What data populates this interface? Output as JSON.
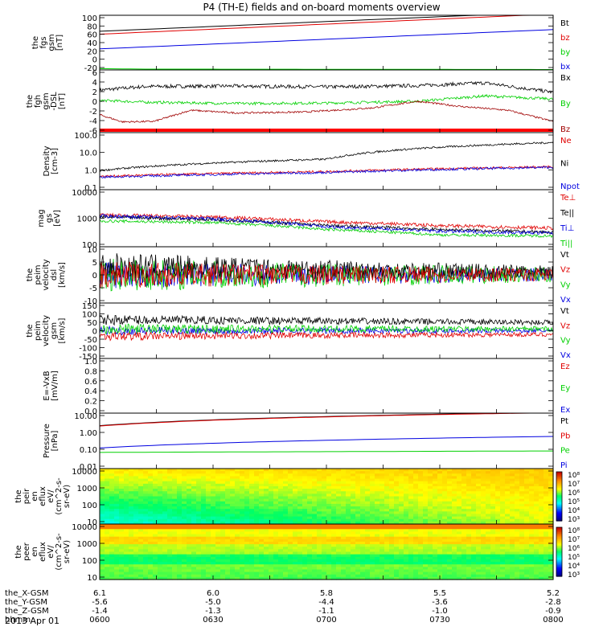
{
  "title": "P4 (TH-E) fields and on-board moments overview",
  "date": "2013 Apr 01",
  "colors": {
    "black": "#000000",
    "red": "#e00000",
    "green": "#00d000",
    "blue": "#0000e0",
    "darkred": "#a00000",
    "brightred": "#ff0000"
  },
  "chart_data": [
    {
      "type": "line",
      "name": "fgs",
      "ylabel": [
        "the",
        "fgs",
        "gsm",
        "[nT]"
      ],
      "yticks": [
        "100",
        "80",
        "60",
        "40",
        "20",
        "0",
        "-20"
      ],
      "ylim": [
        -30,
        100
      ],
      "legend": [
        {
          "label": "Bt",
          "color": "#000000"
        },
        {
          "label": "bz",
          "color": "#e00000"
        },
        {
          "label": "by",
          "color": "#00d000"
        },
        {
          "label": "bx",
          "color": "#0000e0"
        }
      ],
      "series": [
        {
          "color": "#000000",
          "x": [
            0,
            1
          ],
          "y": [
            62,
            108
          ],
          "noise": 0
        },
        {
          "color": "#e00000",
          "x": [
            0,
            1
          ],
          "y": [
            55,
            103
          ],
          "noise": 0
        },
        {
          "color": "#0000e0",
          "x": [
            0,
            1
          ],
          "y": [
            20,
            66
          ],
          "noise": 0
        },
        {
          "color": "#00d000",
          "x": [
            0,
            0.1,
            1
          ],
          "y": [
            -27,
            -28,
            -29
          ],
          "noise": 0
        }
      ]
    },
    {
      "type": "line",
      "name": "fgh",
      "ylabel": [
        "the",
        "fgh",
        "gsm",
        "-DSL",
        "[nT]"
      ],
      "yticks": [
        "6",
        "4",
        "2",
        "0",
        "-2",
        "-4",
        "-6"
      ],
      "ylim": [
        -8,
        6
      ],
      "legend": [
        {
          "label": "Bx",
          "color": "#000000"
        },
        {
          "label": "By",
          "color": "#00d000"
        },
        {
          "label": "Bz",
          "color": "#a00000"
        }
      ],
      "series": [
        {
          "color": "#000000",
          "x": [
            0,
            0.1,
            0.3,
            0.5,
            0.7,
            0.85,
            1
          ],
          "y": [
            1.5,
            2.3,
            2.4,
            2.2,
            2.5,
            3.1,
            1.0
          ],
          "noise": 0.4
        },
        {
          "color": "#00d000",
          "x": [
            0,
            0.1,
            0.3,
            0.5,
            0.7,
            0.85,
            1
          ],
          "y": [
            -0.8,
            -1.2,
            -1.5,
            -1.4,
            -1.0,
            0.2,
            -0.5
          ],
          "noise": 0.3
        },
        {
          "color": "#a00000",
          "x": [
            0,
            0.05,
            0.12,
            0.2,
            0.3,
            0.45,
            0.6,
            0.7,
            0.8,
            0.9,
            1
          ],
          "y": [
            -4,
            -5.6,
            -5.5,
            -3.0,
            -3.6,
            -3.4,
            -2.5,
            -1.0,
            -2.2,
            -3.0,
            -5.5
          ],
          "noise": 0.2
        }
      ],
      "redbar": true
    },
    {
      "type": "line",
      "name": "density",
      "scale": "log",
      "ylabel": [
        "Density",
        "[cm-3]"
      ],
      "yticks": [
        "100.0",
        "10.0",
        "1.0",
        "0.1"
      ],
      "ylim": [
        0.1,
        100
      ],
      "legend": [
        {
          "label": "Ne",
          "color": "#e00000"
        },
        {
          "label": "Ni",
          "color": "#000000"
        },
        {
          "label": "Npot",
          "color": "#0000e0"
        }
      ],
      "series": [
        {
          "color": "#000000",
          "x": [
            0,
            0.5,
            1
          ],
          "y": [
            1.0,
            4.0,
            30
          ],
          "noise": 0.05
        },
        {
          "color": "#e00000",
          "x": [
            0,
            0.5,
            1
          ],
          "y": [
            0.5,
            0.9,
            1.6
          ],
          "noise": 0.06
        },
        {
          "color": "#0000e0",
          "x": [
            0,
            0.5,
            1
          ],
          "y": [
            0.45,
            0.8,
            1.5
          ],
          "noise": 0.06
        }
      ]
    },
    {
      "type": "line",
      "name": "temperature",
      "scale": "log",
      "ylabel": [
        "mag",
        "gs",
        "[eV]"
      ],
      "yticks": [
        "10000",
        "1000",
        "100"
      ],
      "ylim": [
        100,
        10000
      ],
      "legend": [
        {
          "label": "Te⊥",
          "color": "#e00000"
        },
        {
          "label": "Te||",
          "color": "#000000"
        },
        {
          "label": "Ti⊥",
          "color": "#0000e0"
        },
        {
          "label": "Ti||",
          "color": "#00d000"
        }
      ],
      "series": [
        {
          "color": "#e00000",
          "x": [
            0,
            0.25,
            0.5,
            0.75,
            1
          ],
          "y": [
            1300,
            1100,
            750,
            550,
            450
          ],
          "noise": 0.06
        },
        {
          "color": "#000000",
          "x": [
            0,
            0.25,
            0.5,
            0.75,
            1
          ],
          "y": [
            1100,
            900,
            550,
            400,
            320
          ],
          "noise": 0.06
        },
        {
          "color": "#0000e0",
          "x": [
            0,
            0.25,
            0.5,
            0.75,
            1
          ],
          "y": [
            1200,
            950,
            500,
            350,
            300
          ],
          "noise": 0.06
        },
        {
          "color": "#00d000",
          "x": [
            0,
            0.25,
            0.5,
            0.75,
            1
          ],
          "y": [
            800,
            700,
            400,
            260,
            240
          ],
          "noise": 0.05
        }
      ]
    },
    {
      "type": "line",
      "name": "peim-dsl",
      "ylabel": [
        "the",
        "peim",
        "velocity",
        "dsl",
        "[km/s]"
      ],
      "yticks": [
        "10",
        "5",
        "0",
        "-5",
        "-10"
      ],
      "ylim": [
        -10,
        10
      ],
      "legend": [
        {
          "label": "Vt",
          "color": "#000000"
        },
        {
          "label": "Vz",
          "color": "#e00000"
        },
        {
          "label": "Vy",
          "color": "#00d000"
        },
        {
          "label": "Vx",
          "color": "#0000e0"
        }
      ],
      "series": [
        {
          "color": "#0000e0",
          "x": [
            0,
            1
          ],
          "y": [
            0,
            0
          ],
          "noise": 5,
          "decay": 1.5
        },
        {
          "color": "#00d000",
          "x": [
            0,
            1
          ],
          "y": [
            0,
            0
          ],
          "noise": 6,
          "decay": 1.5
        },
        {
          "color": "#000000",
          "x": [
            0,
            1
          ],
          "y": [
            3,
            1
          ],
          "noise": 5,
          "decay": 1.3
        },
        {
          "color": "#e00000",
          "x": [
            0,
            1
          ],
          "y": [
            0,
            0
          ],
          "noise": 5,
          "decay": 1.3
        }
      ]
    },
    {
      "type": "line",
      "name": "peim-gsm",
      "ylabel": [
        "the",
        "peim",
        "velocity",
        "gsm",
        "[km/s]"
      ],
      "yticks": [
        "150",
        "100",
        "50",
        "0",
        "-50",
        "-100",
        "-150"
      ],
      "ylim": [
        -150,
        150
      ],
      "legend": [
        {
          "label": "Vt",
          "color": "#000000"
        },
        {
          "label": "Vz",
          "color": "#e00000"
        },
        {
          "label": "Vy",
          "color": "#00d000"
        },
        {
          "label": "Vx",
          "color": "#0000e0"
        }
      ],
      "series": [
        {
          "color": "#0000e0",
          "x": [
            0,
            1
          ],
          "y": [
            0,
            0
          ],
          "noise": 25,
          "decay": 1.0
        },
        {
          "color": "#000000",
          "x": [
            0,
            1
          ],
          "y": [
            60,
            45
          ],
          "noise": 30,
          "decay": 0.9
        },
        {
          "color": "#00d000",
          "x": [
            0,
            1
          ],
          "y": [
            10,
            10
          ],
          "noise": 30,
          "decay": 1.0
        },
        {
          "color": "#e00000",
          "x": [
            0,
            1
          ],
          "y": [
            -30,
            -20
          ],
          "noise": 25,
          "decay": 1.0
        }
      ]
    },
    {
      "type": "line",
      "name": "efield",
      "ylabel": [
        "E=-VxB",
        "[mV/m]"
      ],
      "yticks": [
        "1.0",
        "0.8",
        "0.6",
        "0.4",
        "0.2",
        "0.0"
      ],
      "ylim": [
        0,
        1
      ],
      "legend": [
        {
          "label": "Ez",
          "color": "#e00000"
        },
        {
          "label": "Ey",
          "color": "#00d000"
        },
        {
          "label": "Ex",
          "color": "#0000e0"
        }
      ],
      "series": []
    },
    {
      "type": "line",
      "name": "pressure",
      "scale": "log",
      "ylabel": [
        "Pressure",
        "[nPa]"
      ],
      "yticks": [
        "10.00",
        "1.00",
        "0.10",
        "0.01"
      ],
      "ylim": [
        0.01,
        10
      ],
      "legend": [
        {
          "label": "Pt",
          "color": "#000000"
        },
        {
          "label": "Pb",
          "color": "#e00000"
        },
        {
          "label": "Pe",
          "color": "#00d000"
        },
        {
          "label": "Pi",
          "color": "#0000e0"
        }
      ],
      "series": [
        {
          "color": "#00d000",
          "x": [
            0,
            1
          ],
          "y": [
            0.075,
            0.09
          ],
          "noise": 0
        },
        {
          "color": "#0000e0",
          "x": [
            0,
            1
          ],
          "y": [
            0.13,
            0.55
          ],
          "noise": 0
        },
        {
          "color": "#000000",
          "x": [
            0,
            1
          ],
          "y": [
            2.1,
            11
          ],
          "noise": 0
        },
        {
          "color": "#e00000",
          "x": [
            0,
            1
          ],
          "y": [
            2.0,
            10.5
          ],
          "noise": 0
        }
      ]
    },
    {
      "type": "heatmap",
      "name": "peir-spectrogram",
      "ylabel": [
        "the",
        "peir",
        "en",
        "eflux",
        "eV/",
        "(cm^2-s-",
        "sr-eV)"
      ],
      "yticks": [
        "10000",
        "1000",
        "100",
        "10"
      ],
      "colorbar_ticks": [
        "10⁸",
        "10⁷",
        "10⁶",
        "10⁵",
        "10⁴",
        "10³"
      ],
      "zlim": [
        3,
        8
      ],
      "description": "ion energy flux: cyan-green at low energy early, shifting to green/yellow later"
    },
    {
      "type": "heatmap",
      "name": "peer-spectrogram",
      "ylabel": [
        "the",
        "peer",
        "en",
        "eflux",
        "eV/",
        "(cm^2-s-",
        "sr-eV)"
      ],
      "yticks": [
        "10000",
        "1000",
        "100",
        "10"
      ],
      "colorbar_ticks": [
        "10⁸",
        "10⁷",
        "10⁶",
        "10⁵",
        "10⁴",
        "10³"
      ],
      "zlim": [
        3,
        8
      ],
      "description": "electron energy flux: orange at top, yellow below with green bands at low energy"
    }
  ],
  "xaxis": {
    "rows": [
      {
        "label": "the_X-GSM",
        "values": [
          "6.1",
          "6.0",
          "5.8",
          "5.5",
          "5.2"
        ]
      },
      {
        "label": "the_Y-GSM",
        "values": [
          "-5.6",
          "-5.0",
          "-4.4",
          "-3.6",
          "-2.8"
        ]
      },
      {
        "label": "the_Z-GSM",
        "values": [
          "-1.4",
          "-1.3",
          "-1.1",
          "-1.0",
          "-0.9"
        ]
      },
      {
        "label": "hhmm",
        "values": [
          "0600",
          "0630",
          "0700",
          "0730",
          "0800"
        ]
      }
    ]
  }
}
